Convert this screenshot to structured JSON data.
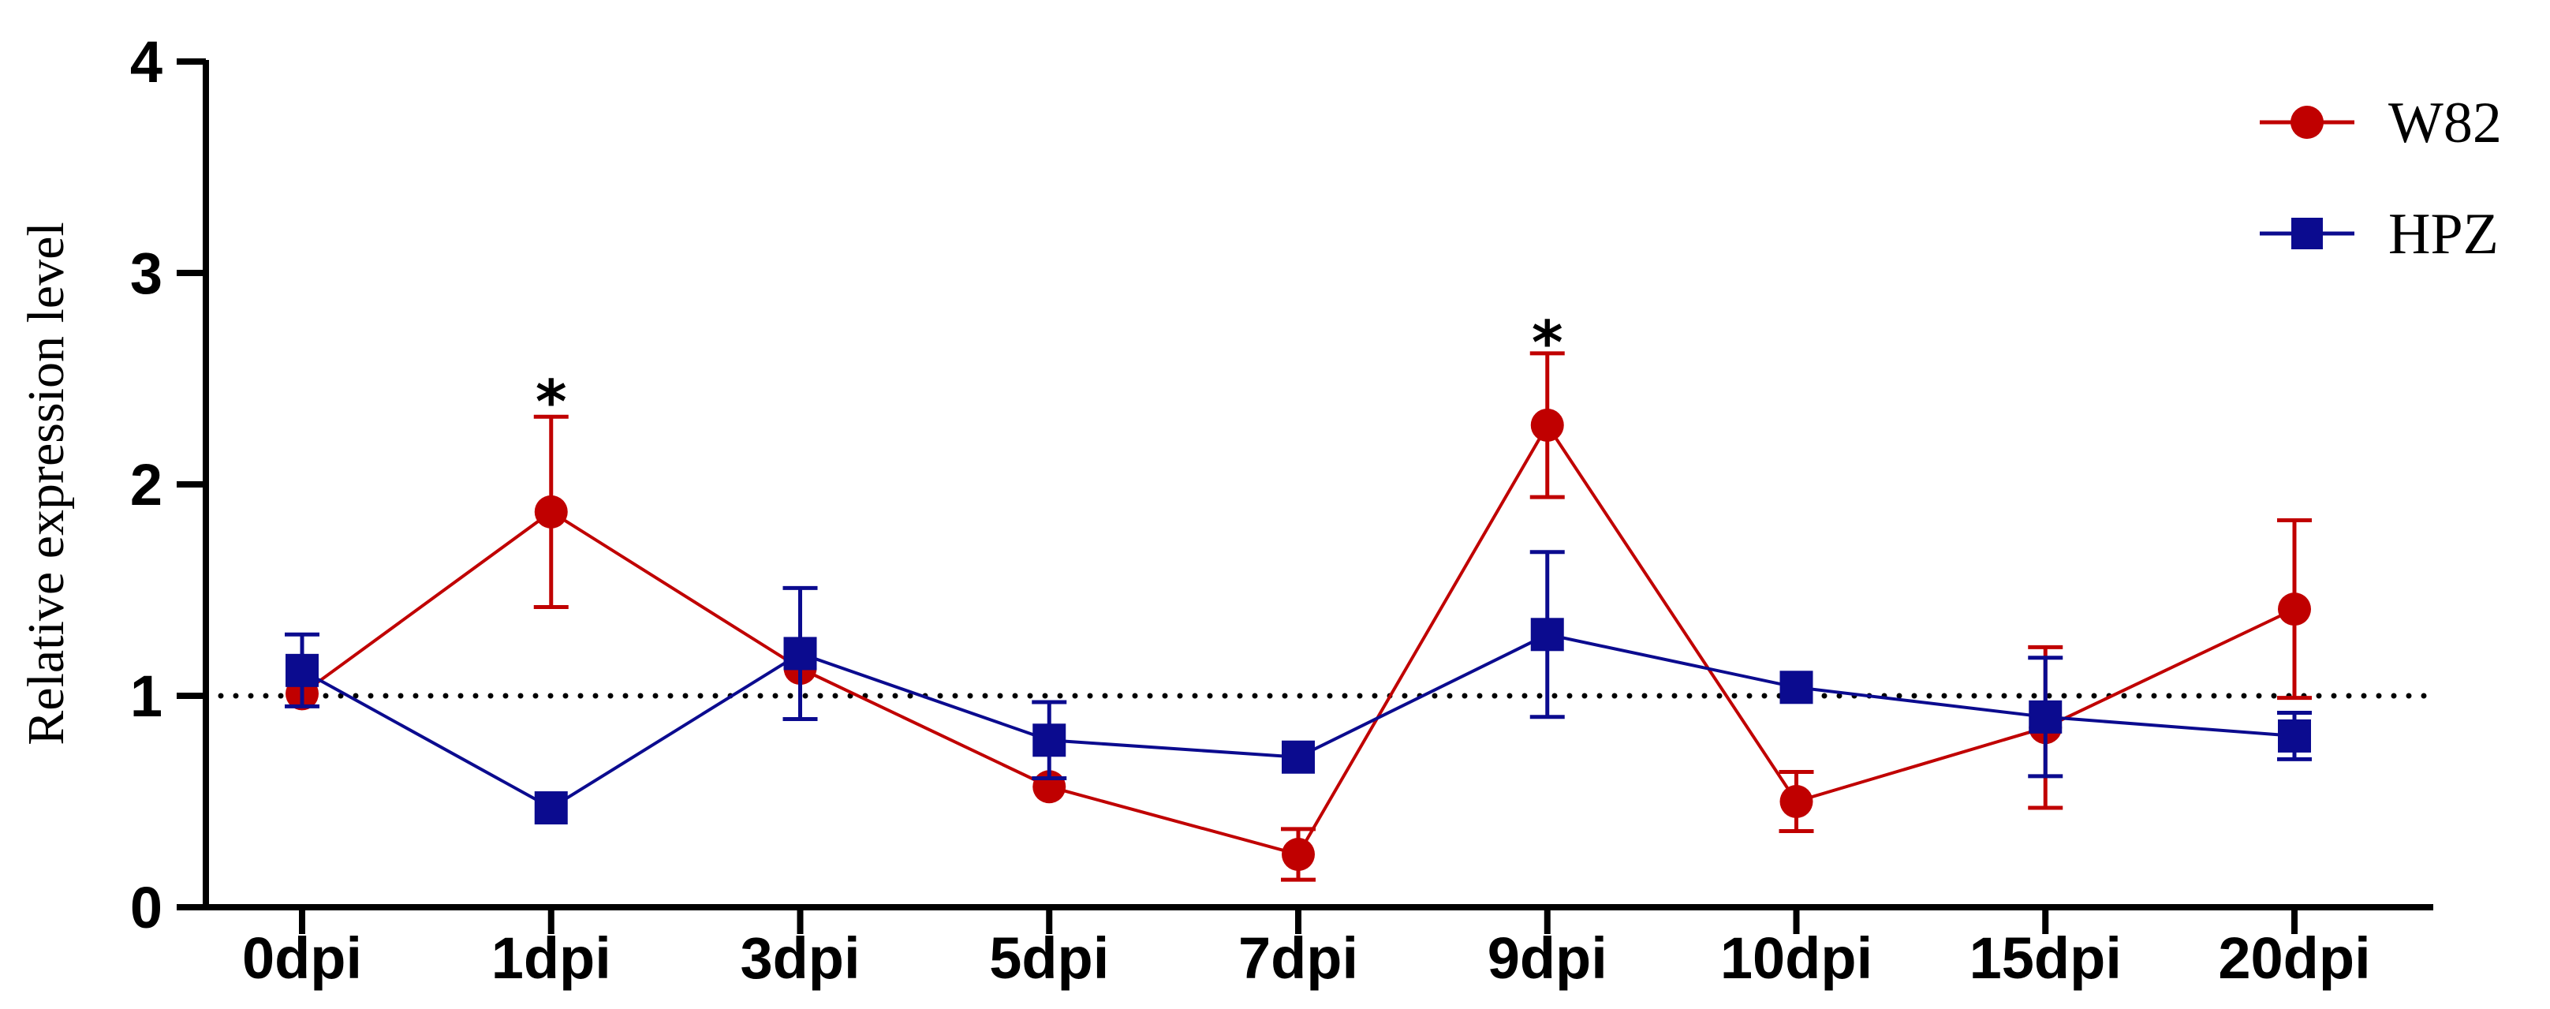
{
  "chart_data": {
    "type": "line",
    "title": "",
    "xlabel": "",
    "ylabel": "Relative  expression level",
    "categories": [
      "0dpi",
      "1dpi",
      "3dpi",
      "5dpi",
      "7dpi",
      "9dpi",
      "10dpi",
      "15dpi",
      "20dpi"
    ],
    "ylim": [
      0,
      4
    ],
    "yticks": [
      "0",
      "1",
      "2",
      "3",
      "4"
    ],
    "reference_line": 1,
    "legend_position": "top-right",
    "series": [
      {
        "name": "W82",
        "color": "#c00000",
        "marker": "circle",
        "values": [
          1.01,
          1.87,
          1.13,
          0.57,
          0.25,
          2.28,
          0.5,
          0.85,
          1.41
        ],
        "errors": [
          0.0,
          0.45,
          0.0,
          0.0,
          0.12,
          0.34,
          0.14,
          0.38,
          0.42
        ]
      },
      {
        "name": "HPZ",
        "color": "#0b0b8f",
        "marker": "square",
        "values": [
          1.12,
          0.47,
          1.2,
          0.79,
          0.71,
          1.29,
          1.04,
          0.9,
          0.81
        ],
        "errors": [
          0.17,
          0.0,
          0.31,
          0.18,
          0.0,
          0.39,
          0.0,
          0.28,
          0.11
        ]
      }
    ],
    "annotations": [
      {
        "category": "1dpi",
        "text": "*",
        "value": 2.48
      },
      {
        "category": "9dpi",
        "text": "*",
        "value": 2.76
      }
    ]
  }
}
